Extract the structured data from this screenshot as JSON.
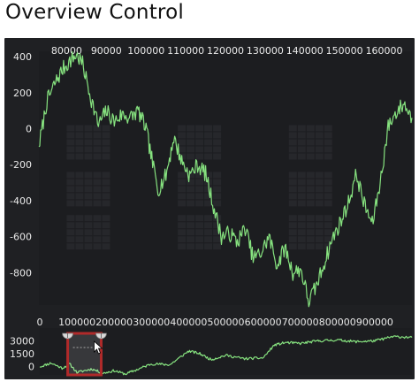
{
  "page": {
    "title": "Overview Control"
  },
  "colors": {
    "background": "#1f2023",
    "plot_area": "#1c1d20",
    "series_line": "#86e27f",
    "selection_border": "#b02a2a",
    "selection_fill": "#ffffff",
    "tick_text": "#e9e9e9"
  },
  "chart_data": [
    {
      "type": "line",
      "title": "",
      "xlabel": "",
      "ylabel": "",
      "xlim": [
        73000,
        167000
      ],
      "ylim": [
        -980,
        430
      ],
      "x_ticks": [
        "80000",
        "90000",
        "100000",
        "110000",
        "120000",
        "130000",
        "140000",
        "150000",
        "160000"
      ],
      "y_ticks": [
        "400",
        "200",
        "0",
        "-200",
        "-400",
        "-600",
        "-800"
      ],
      "x_axis_position": "top",
      "grid": "faint block pattern",
      "series": [
        {
          "x": [
            73000,
            75000,
            77000,
            79000,
            81000,
            82500,
            84000,
            86000,
            88000,
            90000,
            92000,
            94000,
            96000,
            98000,
            100000,
            101000,
            103000,
            105000,
            107000,
            109000,
            111000,
            113000,
            115000,
            117000,
            119000,
            121000,
            123000,
            125000,
            127000,
            129000,
            131000,
            133000,
            135000,
            137000,
            139000,
            141000,
            143000,
            145000,
            147000,
            149000,
            151000,
            153000,
            155000,
            157000,
            159000,
            161000,
            163000,
            165000,
            167000
          ],
          "y": [
            -100,
            150,
            250,
            330,
            380,
            410,
            360,
            180,
            20,
            100,
            40,
            80,
            60,
            100,
            0,
            -120,
            -340,
            -260,
            -50,
            -180,
            -260,
            -200,
            -250,
            -430,
            -600,
            -580,
            -630,
            -550,
            -720,
            -690,
            -600,
            -760,
            -660,
            -800,
            -780,
            -960,
            -870,
            -740,
            -610,
            -520,
            -410,
            -250,
            -420,
            -530,
            -300,
            10,
            90,
            140,
            60
          ]
        }
      ]
    },
    {
      "type": "line",
      "title": "",
      "xlim": [
        0,
        1000000
      ],
      "ylim": [
        -1000,
        4500
      ],
      "x_ticks": [
        "0",
        "100000",
        "200000",
        "300000",
        "400000",
        "500000",
        "600000",
        "700000",
        "800000",
        "900000"
      ],
      "y_ticks": [
        "3000",
        "1500",
        "0"
      ],
      "x_axis_position": "top",
      "selection_range": [
        75000,
        165000
      ],
      "series": [
        {
          "x": [
            0,
            30000,
            60000,
            80000,
            100000,
            140000,
            170000,
            200000,
            230000,
            260000,
            300000,
            350000,
            400000,
            430000,
            460000,
            500000,
            550000,
            600000,
            630000,
            660000,
            700000,
            750000,
            800000,
            850000,
            900000,
            950000,
            1000000
          ],
          "y": [
            -50,
            400,
            -200,
            300,
            -700,
            -300,
            -800,
            -500,
            -900,
            -400,
            300,
            200,
            1800,
            1500,
            800,
            1300,
            900,
            1000,
            2500,
            2800,
            2700,
            3000,
            3100,
            2900,
            3000,
            3500,
            3400
          ]
        }
      ]
    }
  ]
}
